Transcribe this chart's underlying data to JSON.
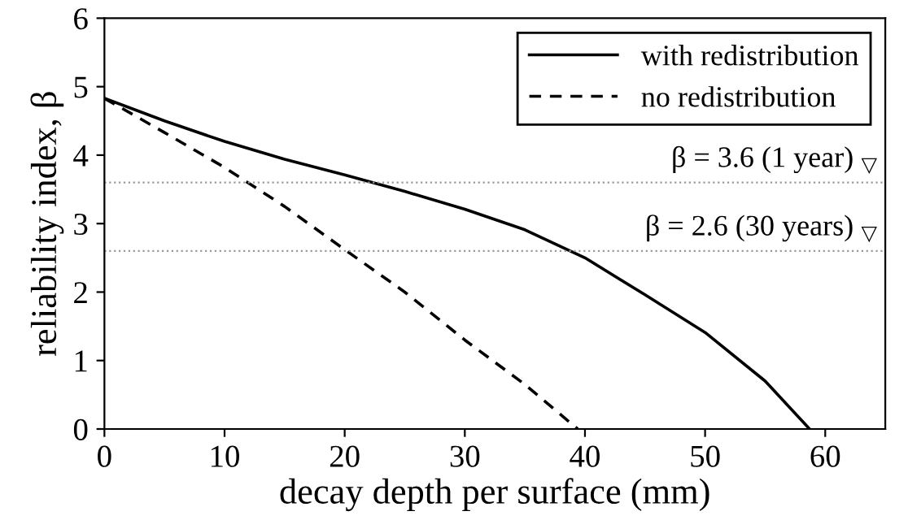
{
  "chart_data": {
    "type": "line",
    "xlabel": "decay depth per surface (mm)",
    "ylabel": "reliability index, β",
    "xlim": [
      0,
      65
    ],
    "ylim": [
      0,
      6
    ],
    "xticks": [
      0,
      10,
      20,
      30,
      40,
      50,
      60
    ],
    "yticks": [
      0,
      1,
      2,
      3,
      4,
      5,
      6
    ],
    "grid": false,
    "legend": "top right",
    "marker": "none",
    "series": [
      {
        "name": "with redistribution",
        "color": "#000000",
        "line_style": "solid",
        "x": [
          0,
          5,
          10,
          15,
          20,
          25,
          30,
          35,
          40,
          45,
          50,
          55,
          58.7
        ],
        "values": [
          4.83,
          4.5,
          4.2,
          3.94,
          3.71,
          3.47,
          3.21,
          2.91,
          2.5,
          1.96,
          1.41,
          0.7,
          0
        ]
      },
      {
        "name": "no redistribution",
        "color": "#000000",
        "line_style": "dashed",
        "x": [
          0,
          5,
          10,
          15,
          20,
          25,
          30,
          35,
          39.4
        ],
        "values": [
          4.83,
          4.33,
          3.82,
          3.25,
          2.62,
          2.0,
          1.3,
          0.65,
          0
        ]
      }
    ],
    "ref_lines": [
      {
        "axis": "y",
        "value": 3.6,
        "label": "β = 3.6 (1 year) $_{▽}$",
        "color": "#999999",
        "line_style": "dotted"
      },
      {
        "axis": "y",
        "value": 2.6,
        "label": "β = 2.6 (30 years) $_{▽}$",
        "color": "#999999",
        "line_style": "dotted"
      }
    ]
  }
}
